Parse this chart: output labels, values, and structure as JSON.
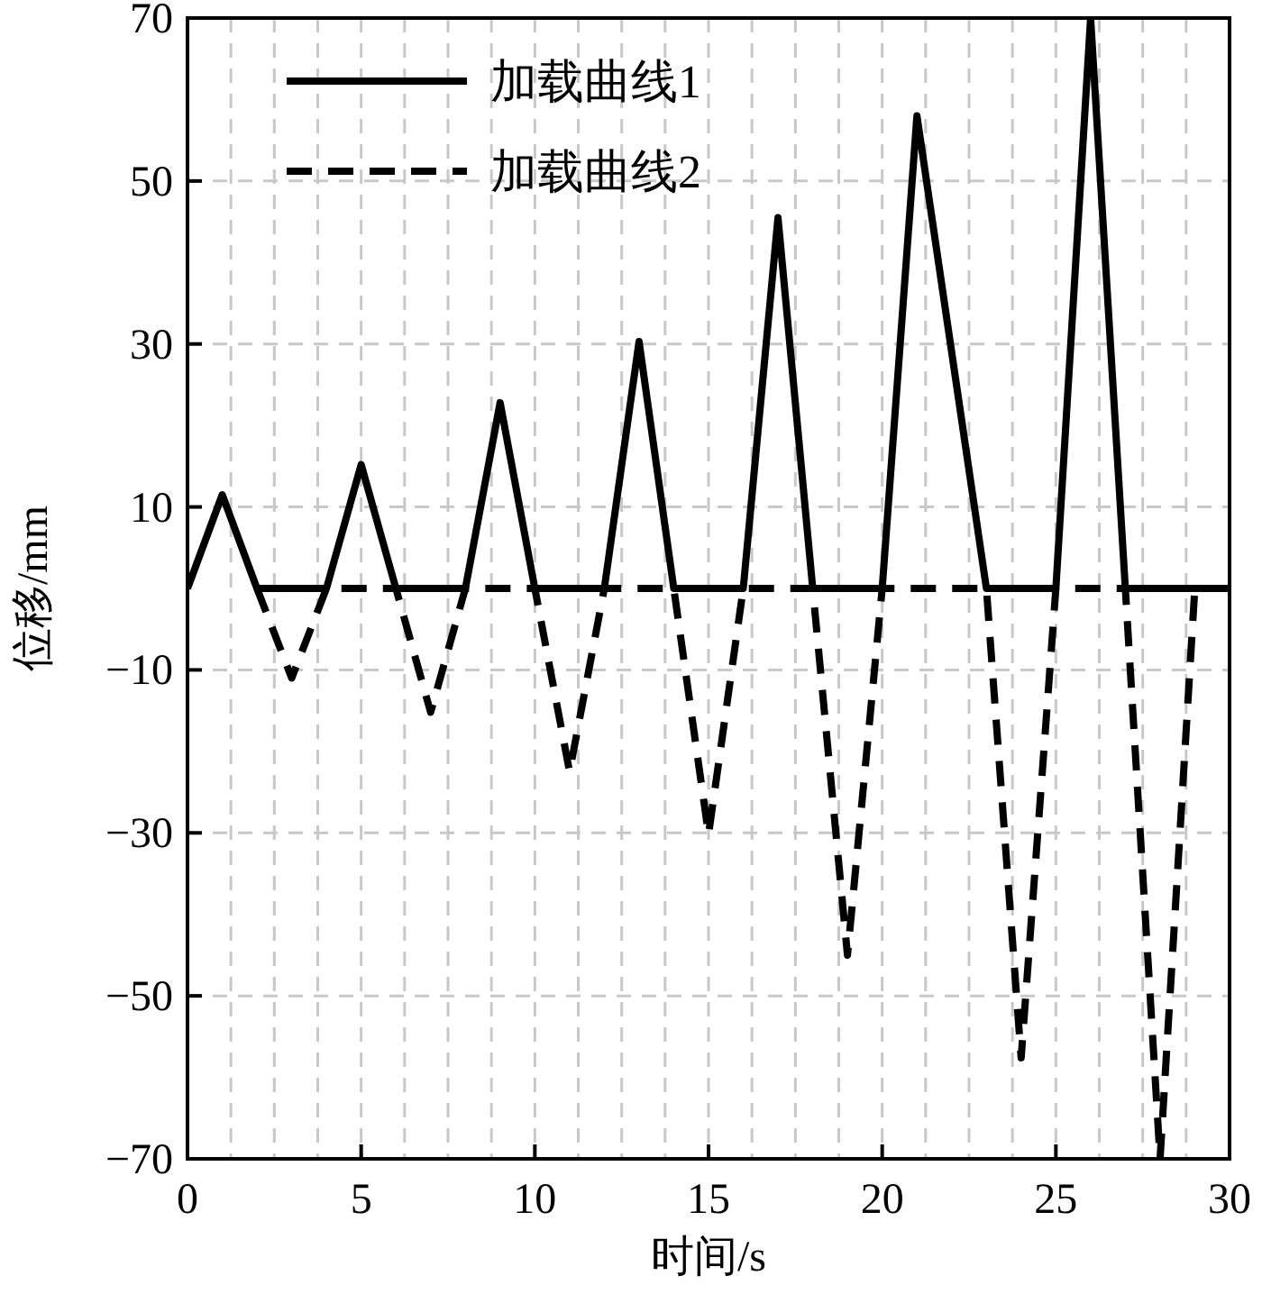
{
  "chart_data": {
    "type": "line",
    "xlabel": "时间/s",
    "ylabel": "位移/mm",
    "xlim": [
      0,
      30
    ],
    "ylim": [
      -70,
      70
    ],
    "xticks": [
      0,
      {
        "value": 1.25,
        "label": null
      },
      {
        "value": 2.5,
        "label": null
      },
      {
        "value": 3.75,
        "label": null
      },
      5,
      {
        "value": 6.25,
        "label": null
      },
      {
        "value": 7.5,
        "label": null
      },
      {
        "value": 8.75,
        "label": null
      },
      10,
      {
        "value": 11.25,
        "label": null
      },
      {
        "value": 12.5,
        "label": null
      },
      {
        "value": 13.75,
        "label": null
      },
      15,
      {
        "value": 16.25,
        "label": null
      },
      {
        "value": 17.5,
        "label": null
      },
      {
        "value": 18.75,
        "label": null
      },
      20,
      {
        "value": 21.25,
        "label": null
      },
      {
        "value": 22.5,
        "label": null
      },
      {
        "value": 23.75,
        "label": null
      },
      25,
      {
        "value": 26.25,
        "label": null
      },
      {
        "value": 27.5,
        "label": null
      },
      {
        "value": 28.75,
        "label": null
      },
      30
    ],
    "yticks": [
      {
        "value": -70,
        "label": "−70"
      },
      {
        "value": -50,
        "label": "−50"
      },
      {
        "value": -30,
        "label": "−30"
      },
      {
        "value": -10,
        "label": "−10"
      },
      10,
      30,
      50,
      70
    ],
    "grid": true,
    "legend": "top left",
    "marker": "none",
    "series": [
      {
        "name": "加载曲线1",
        "color": "#000000",
        "line_style": "solid",
        "x": [
          0,
          1,
          2,
          4,
          5,
          6,
          8,
          9,
          10,
          12,
          13,
          14,
          16,
          17,
          18,
          20,
          21,
          23,
          25,
          26,
          27,
          30
        ],
        "values": [
          0,
          11.5,
          0,
          0,
          15.2,
          0,
          0,
          22.8,
          0,
          0,
          30.3,
          0,
          0,
          45.5,
          0,
          0,
          58,
          0,
          0,
          70,
          0,
          0
        ]
      },
      {
        "name": "加载曲线2",
        "color": "#000000",
        "line_style": "dashed",
        "x": [
          2,
          3,
          4,
          6,
          7,
          8,
          10,
          11,
          12,
          14,
          15,
          16,
          18,
          19,
          20,
          23,
          24,
          25,
          27,
          28,
          29
        ],
        "values": [
          0,
          -11,
          0,
          0,
          -15.2,
          0,
          0,
          -22.5,
          0,
          0,
          -30.2,
          0,
          0,
          -45,
          0,
          0,
          -57.6,
          0,
          0,
          -70,
          0
        ]
      }
    ]
  }
}
